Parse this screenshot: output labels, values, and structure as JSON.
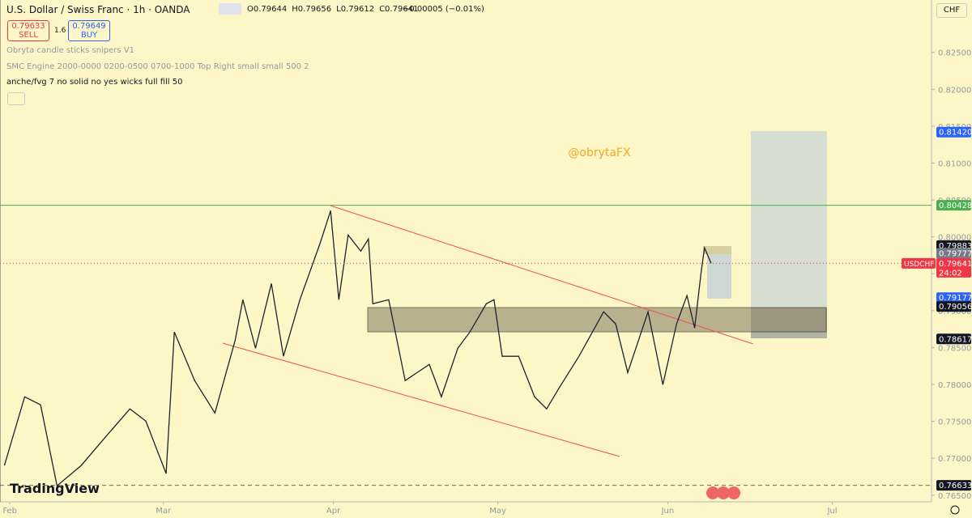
{
  "toolbar": {
    "symbol": "U.S. Dollar / Swiss Franc · 1h · OANDA",
    "ohlc": [
      {
        "key": "O",
        "value": "0.79644"
      },
      {
        "key": "H",
        "value": "0.79656"
      },
      {
        "key": "L",
        "value": "0.79612"
      },
      {
        "key": "C",
        "value": "0.79641"
      }
    ],
    "change": "−0.00005 (−0.01%)",
    "sell_price": "0.79633",
    "sell": "SELL",
    "spread": "1.6",
    "buy_price": "0.79649",
    "buy": "BUY",
    "indicators": [
      "Obryta candle sticks snipers V1",
      "SMC Engine 2000-0000 0200-0500 0700-1000 Top Right small small 500 2",
      "anche/fvg 7 no solid no yes wicks full fill 50"
    ],
    "currency": "CHF",
    "brand": "TradingView"
  },
  "chart_data": {
    "type": "line",
    "watermark": "@obrytaFX",
    "x": [
      -1.0,
      2.7,
      5.6,
      8.6,
      13.0,
      17.4,
      21.9,
      24.8,
      28.5,
      30.0,
      33.7,
      37.4,
      41.1,
      42.5,
      44.8,
      47.7,
      49.9,
      52.9,
      56.6,
      58.5,
      60.0,
      61.7,
      64.0,
      65.4,
      66.2,
      69.1,
      72.1,
      76.5,
      78.7,
      81.7,
      83.9,
      86.9,
      88.3,
      89.8,
      92.8,
      95.7,
      97.9,
      100.1,
      103.8,
      108.3,
      110.5,
      112.7,
      116.4,
      119.1,
      121.6,
      123.5,
      124.9,
      126.1,
      126.7,
      127.9
    ],
    "series": [
      {
        "name": "USDCHF",
        "color": "#1e222d",
        "values": [
          0.76901,
          0.77833,
          0.77724,
          0.76627,
          0.76901,
          0.77285,
          0.77669,
          0.77504,
          0.76792,
          0.78711,
          0.78053,
          0.77614,
          0.78601,
          0.79149,
          0.78491,
          0.79368,
          0.78382,
          0.79149,
          0.79917,
          0.80355,
          0.79149,
          0.80026,
          0.79807,
          0.79971,
          0.79094,
          0.79149,
          0.78053,
          0.78272,
          0.77833,
          0.78491,
          0.78711,
          0.79094,
          0.79149,
          0.78382,
          0.78382,
          0.77833,
          0.77669,
          0.77943,
          0.78382,
          0.78985,
          0.7882,
          0.78162,
          0.78985,
          0.77998,
          0.7882,
          0.79204,
          0.78765,
          0.79533,
          0.79851,
          0.79643
        ]
      }
    ],
    "xlim": [
      -1.8,
      168.1
    ],
    "xticks": [
      {
        "value": 0,
        "label": "Feb"
      },
      {
        "value": 28,
        "label": "Mar"
      },
      {
        "value": 59,
        "label": "Apr"
      },
      {
        "value": 89,
        "label": "May"
      },
      {
        "value": 120,
        "label": "Jun"
      },
      {
        "value": 150,
        "label": "Jul"
      }
    ],
    "ylim": [
      0.7641,
      0.8321
    ],
    "yticks": [
      {
        "value": 0.765,
        "label": "0.76500"
      },
      {
        "value": 0.77,
        "label": "0.77000"
      },
      {
        "value": 0.775,
        "label": "0.77500"
      },
      {
        "value": 0.78,
        "label": "0.78000"
      },
      {
        "value": 0.785,
        "label": "0.78500"
      },
      {
        "value": 0.79,
        "label": "0.79000"
      },
      {
        "value": 0.795,
        "label": "0.79500"
      },
      {
        "value": 0.8,
        "label": "0.80000"
      },
      {
        "value": 0.805,
        "label": "0.80500"
      },
      {
        "value": 0.81,
        "label": "0.81000"
      },
      {
        "value": 0.815,
        "label": "0.81500"
      },
      {
        "value": 0.82,
        "label": "0.82000"
      },
      {
        "value": 0.825,
        "label": "0.82500"
      }
    ],
    "grid": false,
    "price_labels": [
      {
        "value": 0.8142,
        "label": "0.81420",
        "color": "#2962ff"
      },
      {
        "value": 0.80428,
        "label": "0.80428",
        "color": "#4caf50",
        "line": "solid"
      },
      {
        "value": 0.79883,
        "label": "0.79883",
        "color": "#131722"
      },
      {
        "value": 0.79777,
        "label": "0.79777",
        "color": "#787b86"
      },
      {
        "value": 0.79641,
        "label": "0.79641",
        "color": "#f23645",
        "line": "dotted",
        "countdown": "24:02"
      },
      {
        "value": 0.79177,
        "label": "0.79177",
        "color": "#2962ff"
      },
      {
        "value": 0.79056,
        "label": "0.79056",
        "color": "#131722"
      },
      {
        "value": 0.78617,
        "label": "0.78617",
        "color": "#131722"
      },
      {
        "value": 0.76633,
        "label": "0.76633",
        "color": "#131722",
        "line": "dashed"
      }
    ]
  }
}
